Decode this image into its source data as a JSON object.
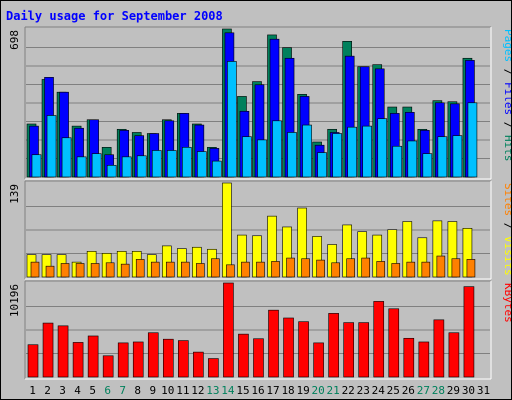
{
  "title": "Daily usage for September 2008",
  "colors": {
    "background": "#c0c0c0",
    "plot_bg": "#c0c0c0",
    "grid": "#808080",
    "hits": "#00805c",
    "files": "#0000ff",
    "pages": "#00c0ff",
    "visits": "#ffff00",
    "sites": "#ff8000",
    "kbytes": "#ff0000",
    "title_text": "#0000ff",
    "weekend_text": "#00805c",
    "weekday_text": "#000000"
  },
  "labels": {
    "top_max": "698",
    "mid_max": "139",
    "bot_max": "10196",
    "legend_top": [
      {
        "text": "Pages",
        "color": "#00c0ff"
      },
      {
        "text": " / ",
        "color": "#000000"
      },
      {
        "text": "Files",
        "color": "#0000ff"
      },
      {
        "text": " / ",
        "color": "#000000"
      },
      {
        "text": "Hits",
        "color": "#00805c"
      }
    ],
    "legend_mid": [
      {
        "text": "Sites",
        "color": "#ff8000"
      },
      {
        "text": " / ",
        "color": "#000000"
      },
      {
        "text": "Visits",
        "color": "#ffff00"
      }
    ],
    "legend_bot": [
      {
        "text": "KBytes",
        "color": "#ff0000"
      }
    ]
  },
  "chart_data": [
    {
      "type": "bar",
      "panel": "hits-files-pages",
      "ymax": 698,
      "categories": [
        "1",
        "2",
        "3",
        "4",
        "5",
        "6",
        "7",
        "8",
        "9",
        "10",
        "11",
        "12",
        "13",
        "14",
        "15",
        "16",
        "17",
        "18",
        "19",
        "20",
        "21",
        "22",
        "23",
        "24",
        "25",
        "26",
        "27",
        "28",
        "29",
        "30",
        "31"
      ],
      "weekend_days": [
        "6",
        "7",
        "13",
        "14",
        "20",
        "21",
        "27",
        "28"
      ],
      "series": [
        {
          "name": "Hits",
          "values": [
            250,
            460,
            400,
            240,
            270,
            140,
            225,
            210,
            205,
            270,
            300,
            250,
            140,
            698,
            380,
            450,
            670,
            610,
            390,
            165,
            225,
            640,
            520,
            530,
            330,
            330,
            225,
            360,
            355,
            560,
            0
          ]
        },
        {
          "name": "Files",
          "values": [
            240,
            470,
            400,
            230,
            270,
            105,
            220,
            195,
            205,
            265,
            300,
            245,
            135,
            680,
            310,
            435,
            650,
            560,
            380,
            150,
            210,
            570,
            520,
            510,
            300,
            305,
            220,
            350,
            345,
            550,
            0
          ]
        },
        {
          "name": "Pages",
          "values": [
            105,
            290,
            185,
            95,
            110,
            55,
            95,
            100,
            125,
            125,
            140,
            120,
            75,
            545,
            190,
            175,
            265,
            210,
            245,
            115,
            205,
            235,
            240,
            275,
            145,
            170,
            110,
            190,
            195,
            350,
            0
          ]
        }
      ]
    },
    {
      "type": "bar",
      "panel": "visits-sites",
      "ymax": 139,
      "categories": [
        "1",
        "2",
        "3",
        "4",
        "5",
        "6",
        "7",
        "8",
        "9",
        "10",
        "11",
        "12",
        "13",
        "14",
        "15",
        "16",
        "17",
        "18",
        "19",
        "20",
        "21",
        "22",
        "23",
        "24",
        "25",
        "26",
        "27",
        "28",
        "29",
        "30",
        "31"
      ],
      "series": [
        {
          "name": "Visits",
          "values": [
            33,
            33,
            33,
            22,
            38,
            35,
            38,
            38,
            33,
            46,
            42,
            44,
            41,
            139,
            62,
            61,
            90,
            74,
            102,
            60,
            48,
            77,
            67,
            62,
            70,
            82,
            58,
            83,
            82,
            72,
            0
          ]
        },
        {
          "name": "Sites",
          "values": [
            22,
            16,
            20,
            20,
            20,
            21,
            19,
            26,
            22,
            22,
            22,
            20,
            27,
            18,
            22,
            22,
            23,
            28,
            27,
            25,
            21,
            27,
            28,
            23,
            20,
            22,
            22,
            31,
            27,
            26,
            0
          ]
        }
      ]
    },
    {
      "type": "bar",
      "panel": "kbytes",
      "ymax": 10196,
      "categories": [
        "1",
        "2",
        "3",
        "4",
        "5",
        "6",
        "7",
        "8",
        "9",
        "10",
        "11",
        "12",
        "13",
        "14",
        "15",
        "16",
        "17",
        "18",
        "19",
        "20",
        "21",
        "22",
        "23",
        "24",
        "25",
        "26",
        "27",
        "28",
        "29",
        "30",
        "31"
      ],
      "series": [
        {
          "name": "KBytes",
          "values": [
            3500,
            5850,
            5550,
            3750,
            4450,
            2300,
            3700,
            3800,
            4800,
            4100,
            3950,
            2700,
            2000,
            10196,
            4650,
            4150,
            7250,
            6400,
            6000,
            3700,
            6900,
            5900,
            5900,
            8200,
            7400,
            4200,
            3800,
            6200,
            4800,
            9800,
            0
          ]
        }
      ]
    }
  ]
}
